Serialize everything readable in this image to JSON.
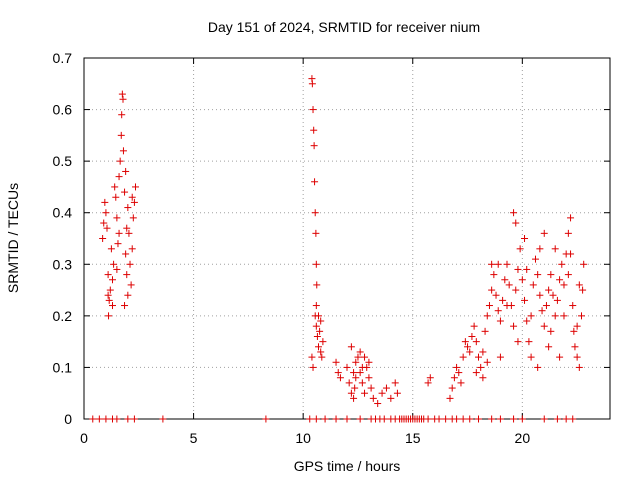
{
  "chart_data": {
    "type": "scatter",
    "title": "Day 151 of 2024, SRMTID for receiver nium",
    "xlabel": "GPS time / hours",
    "ylabel": "SRMTID / TECUs",
    "xlim": [
      0,
      24
    ],
    "ylim": [
      0,
      0.7
    ],
    "xticks": [
      0,
      5,
      10,
      15,
      20
    ],
    "xtick_labels": [
      "0",
      "5",
      "10",
      "15",
      "20"
    ],
    "yticks": [
      0,
      0.1,
      0.2,
      0.3,
      0.4,
      0.5,
      0.6,
      0.7
    ],
    "ytick_labels": [
      "0",
      "0.1",
      "0.2",
      "0.3",
      "0.4",
      "0.5",
      "0.6",
      "0.7"
    ],
    "grid": true,
    "marker": "+",
    "color": "#dd0000",
    "series": [
      {
        "name": "SRMTID",
        "points": [
          [
            0.4,
            0
          ],
          [
            0.7,
            0
          ],
          [
            1.0,
            0
          ],
          [
            1.3,
            0
          ],
          [
            1.5,
            0
          ],
          [
            2.0,
            0
          ],
          [
            2.3,
            0
          ],
          [
            3.6,
            0
          ],
          [
            8.3,
            0
          ],
          [
            10.3,
            0
          ],
          [
            10.6,
            0
          ],
          [
            11.0,
            0
          ],
          [
            11.5,
            0
          ],
          [
            12.0,
            0
          ],
          [
            12.6,
            0
          ],
          [
            13.1,
            0
          ],
          [
            13.3,
            0
          ],
          [
            13.5,
            0
          ],
          [
            13.7,
            0
          ],
          [
            14.0,
            0
          ],
          [
            14.2,
            0
          ],
          [
            14.4,
            0
          ],
          [
            14.5,
            0
          ],
          [
            14.6,
            0
          ],
          [
            14.7,
            0
          ],
          [
            14.8,
            0
          ],
          [
            14.9,
            0
          ],
          [
            15.0,
            0
          ],
          [
            15.1,
            0
          ],
          [
            15.2,
            0
          ],
          [
            15.3,
            0
          ],
          [
            15.4,
            0
          ],
          [
            15.5,
            0
          ],
          [
            15.7,
            0
          ],
          [
            16.0,
            0
          ],
          [
            16.2,
            0
          ],
          [
            16.5,
            0
          ],
          [
            16.8,
            0
          ],
          [
            17.0,
            0
          ],
          [
            17.3,
            0
          ],
          [
            17.6,
            0
          ],
          [
            18.0,
            0
          ],
          [
            18.6,
            0
          ],
          [
            19.0,
            0
          ],
          [
            19.6,
            0
          ],
          [
            20.0,
            0
          ],
          [
            21.0,
            0
          ],
          [
            21.6,
            0
          ],
          [
            22.0,
            0
          ],
          [
            22.3,
            0
          ],
          [
            0.85,
            0.35
          ],
          [
            0.9,
            0.38
          ],
          [
            0.95,
            0.42
          ],
          [
            1.0,
            0.4
          ],
          [
            1.05,
            0.37
          ],
          [
            1.1,
            0.28
          ],
          [
            1.1,
            0.24
          ],
          [
            1.12,
            0.2
          ],
          [
            1.15,
            0.23
          ],
          [
            1.2,
            0.25
          ],
          [
            1.25,
            0.33
          ],
          [
            1.3,
            0.27
          ],
          [
            1.35,
            0.3
          ],
          [
            1.4,
            0.45
          ],
          [
            1.45,
            0.43
          ],
          [
            1.5,
            0.39
          ],
          [
            1.55,
            0.34
          ],
          [
            1.6,
            0.47
          ],
          [
            1.65,
            0.5
          ],
          [
            1.7,
            0.55
          ],
          [
            1.72,
            0.59
          ],
          [
            1.75,
            0.63
          ],
          [
            1.78,
            0.62
          ],
          [
            1.8,
            0.52
          ],
          [
            1.85,
            0.44
          ],
          [
            1.9,
            0.32
          ],
          [
            1.95,
            0.28
          ],
          [
            2.0,
            0.24
          ],
          [
            1.85,
            0.22
          ],
          [
            1.9,
            0.48
          ],
          [
            2.0,
            0.41
          ],
          [
            2.05,
            0.36
          ],
          [
            2.1,
            0.3
          ],
          [
            2.15,
            0.26
          ],
          [
            2.2,
            0.33
          ],
          [
            2.25,
            0.39
          ],
          [
            2.3,
            0.42
          ],
          [
            2.35,
            0.45
          ],
          [
            1.3,
            0.22
          ],
          [
            1.5,
            0.29
          ],
          [
            1.6,
            0.36
          ],
          [
            1.95,
            0.37
          ],
          [
            2.2,
            0.43
          ],
          [
            10.4,
            0.66
          ],
          [
            10.42,
            0.65
          ],
          [
            10.45,
            0.6
          ],
          [
            10.48,
            0.56
          ],
          [
            10.5,
            0.53
          ],
          [
            10.52,
            0.46
          ],
          [
            10.55,
            0.4
          ],
          [
            10.58,
            0.36
          ],
          [
            10.6,
            0.3
          ],
          [
            10.62,
            0.26
          ],
          [
            10.4,
            0.12
          ],
          [
            10.45,
            0.1
          ],
          [
            10.55,
            0.2
          ],
          [
            10.6,
            0.18
          ],
          [
            10.65,
            0.16
          ],
          [
            10.7,
            0.14
          ],
          [
            10.75,
            0.17
          ],
          [
            10.8,
            0.13
          ],
          [
            10.85,
            0.12
          ],
          [
            10.9,
            0.15
          ],
          [
            10.6,
            0.22
          ],
          [
            10.7,
            0.2
          ],
          [
            10.8,
            0.19
          ],
          [
            11.5,
            0.11
          ],
          [
            11.6,
            0.09
          ],
          [
            11.7,
            0.08
          ],
          [
            12.0,
            0.1
          ],
          [
            12.1,
            0.07
          ],
          [
            12.2,
            0.05
          ],
          [
            12.3,
            0.04
          ],
          [
            12.35,
            0.06
          ],
          [
            12.4,
            0.08
          ],
          [
            12.5,
            0.12
          ],
          [
            12.6,
            0.09
          ],
          [
            12.7,
            0.07
          ],
          [
            12.8,
            0.05
          ],
          [
            12.9,
            0.1
          ],
          [
            13.0,
            0.08
          ],
          [
            13.1,
            0.06
          ],
          [
            12.2,
            0.14
          ],
          [
            12.4,
            0.11
          ],
          [
            12.6,
            0.13
          ],
          [
            12.8,
            0.12
          ],
          [
            13.0,
            0.11
          ],
          [
            13.2,
            0.04
          ],
          [
            13.4,
            0.03
          ],
          [
            13.6,
            0.05
          ],
          [
            13.8,
            0.06
          ],
          [
            14.0,
            0.04
          ],
          [
            14.2,
            0.07
          ],
          [
            14.3,
            0.05
          ],
          [
            12.3,
            0.09
          ],
          [
            12.7,
            0.1
          ],
          [
            15.7,
            0.07
          ],
          [
            15.8,
            0.08
          ],
          [
            16.7,
            0.04
          ],
          [
            16.8,
            0.06
          ],
          [
            16.9,
            0.08
          ],
          [
            17.0,
            0.1
          ],
          [
            17.1,
            0.09
          ],
          [
            17.2,
            0.07
          ],
          [
            17.3,
            0.12
          ],
          [
            17.4,
            0.15
          ],
          [
            17.5,
            0.14
          ],
          [
            17.6,
            0.13
          ],
          [
            17.7,
            0.16
          ],
          [
            17.8,
            0.18
          ],
          [
            17.9,
            0.15
          ],
          [
            18.0,
            0.12
          ],
          [
            18.1,
            0.1
          ],
          [
            18.2,
            0.13
          ],
          [
            18.3,
            0.17
          ],
          [
            18.4,
            0.2
          ],
          [
            18.5,
            0.22
          ],
          [
            18.6,
            0.25
          ],
          [
            18.7,
            0.28
          ],
          [
            18.8,
            0.24
          ],
          [
            18.9,
            0.21
          ],
          [
            19.0,
            0.19
          ],
          [
            19.1,
            0.23
          ],
          [
            19.2,
            0.27
          ],
          [
            19.3,
            0.3
          ],
          [
            19.4,
            0.26
          ],
          [
            19.5,
            0.22
          ],
          [
            19.6,
            0.18
          ],
          [
            19.7,
            0.25
          ],
          [
            19.8,
            0.29
          ],
          [
            19.9,
            0.33
          ],
          [
            20.0,
            0.27
          ],
          [
            20.1,
            0.23
          ],
          [
            20.2,
            0.19
          ],
          [
            20.3,
            0.15
          ],
          [
            20.4,
            0.2
          ],
          [
            20.5,
            0.26
          ],
          [
            20.6,
            0.31
          ],
          [
            20.7,
            0.28
          ],
          [
            20.8,
            0.24
          ],
          [
            20.9,
            0.21
          ],
          [
            21.0,
            0.18
          ],
          [
            21.1,
            0.22
          ],
          [
            21.2,
            0.25
          ],
          [
            21.3,
            0.28
          ],
          [
            21.4,
            0.24
          ],
          [
            21.5,
            0.2
          ],
          [
            21.6,
            0.23
          ],
          [
            21.7,
            0.27
          ],
          [
            21.8,
            0.3
          ],
          [
            21.9,
            0.26
          ],
          [
            22.0,
            0.32
          ],
          [
            22.1,
            0.36
          ],
          [
            22.2,
            0.39
          ],
          [
            22.3,
            0.22
          ],
          [
            22.35,
            0.17
          ],
          [
            22.4,
            0.14
          ],
          [
            22.5,
            0.12
          ],
          [
            22.6,
            0.1
          ],
          [
            22.7,
            0.2
          ],
          [
            22.75,
            0.25
          ],
          [
            22.8,
            0.3
          ],
          [
            19.6,
            0.4
          ],
          [
            19.7,
            0.38
          ],
          [
            20.1,
            0.35
          ],
          [
            21.0,
            0.36
          ],
          [
            21.5,
            0.33
          ],
          [
            18.6,
            0.3
          ],
          [
            18.9,
            0.3
          ],
          [
            19.3,
            0.22
          ],
          [
            19.8,
            0.15
          ],
          [
            20.4,
            0.12
          ],
          [
            20.7,
            0.1
          ],
          [
            21.2,
            0.14
          ],
          [
            21.7,
            0.12
          ],
          [
            22.1,
            0.28
          ],
          [
            22.5,
            0.18
          ],
          [
            18.4,
            0.11
          ],
          [
            18.2,
            0.08
          ],
          [
            17.9,
            0.09
          ],
          [
            19.0,
            0.12
          ],
          [
            20.2,
            0.29
          ],
          [
            20.8,
            0.33
          ],
          [
            21.3,
            0.17
          ],
          [
            21.9,
            0.2
          ],
          [
            22.2,
            0.32
          ],
          [
            22.6,
            0.26
          ]
        ]
      }
    ]
  }
}
